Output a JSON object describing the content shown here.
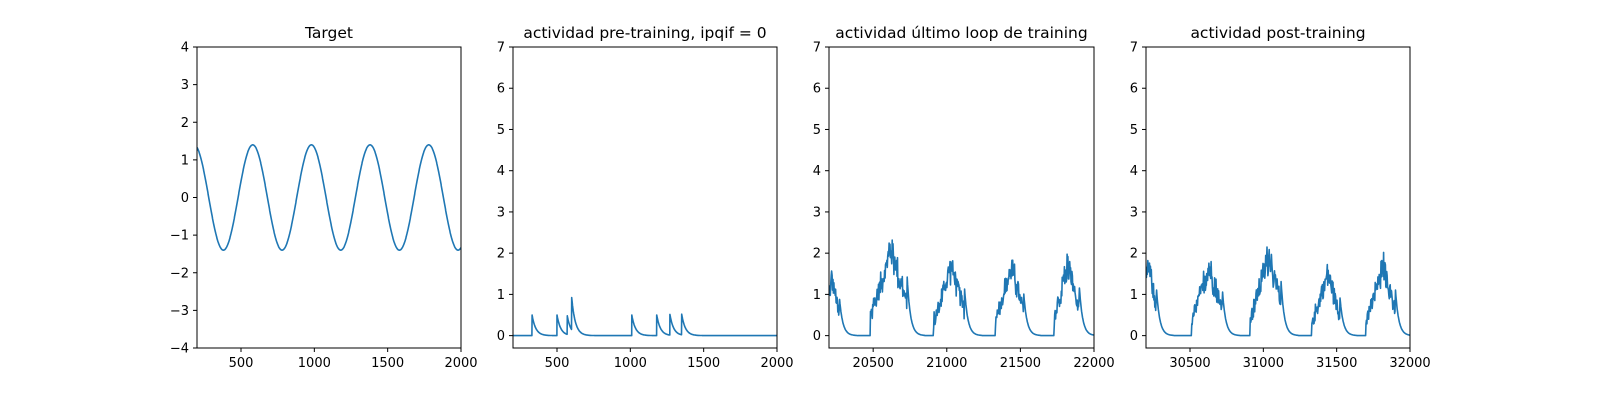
{
  "colors": {
    "series": "#1f77b4",
    "axes": "#000000",
    "background": "#ffffff"
  },
  "chart_data": [
    {
      "type": "line",
      "title": "Target",
      "xlabel": "",
      "ylabel": "",
      "xlim": [
        200,
        2000
      ],
      "ylim": [
        -4,
        4
      ],
      "xticks": [
        500,
        1000,
        1500,
        2000
      ],
      "yticks": [
        -4,
        -3,
        -2,
        -1,
        0,
        1,
        2,
        3,
        4
      ],
      "xtick_labels": [
        "500",
        "1000",
        "1500",
        "2000"
      ],
      "ytick_labels": [
        "−4",
        "−3",
        "−2",
        "−1",
        "0",
        "1",
        "2",
        "3",
        "4"
      ],
      "series": [
        {
          "kind": "sine",
          "amplitude": 1.4,
          "period": 400,
          "peaks_at": [
            580,
            980,
            1380,
            1780
          ],
          "troughs_at": [
            380,
            780,
            1180,
            1580,
            1980
          ],
          "start_value": 1.35
        }
      ]
    },
    {
      "type": "line",
      "title": "actividad pre-training, ipqif = 0",
      "xlabel": "",
      "ylabel": "",
      "xlim": [
        200,
        2000
      ],
      "ylim": [
        -0.3,
        7
      ],
      "xticks": [
        500,
        1000,
        1500,
        2000
      ],
      "yticks": [
        0,
        1,
        2,
        3,
        4,
        5,
        6,
        7
      ],
      "xtick_labels": [
        "500",
        "1000",
        "1500",
        "2000"
      ],
      "ytick_labels": [
        "0",
        "1",
        "2",
        "3",
        "4",
        "5",
        "6",
        "7"
      ],
      "series": [
        {
          "kind": "spikes",
          "baseline": 0,
          "decay": 25,
          "spikes": [
            {
              "x": 330,
              "height": 0.5
            },
            {
              "x": 500,
              "height": 0.5
            },
            {
              "x": 570,
              "height": 0.45
            },
            {
              "x": 600,
              "height": 0.78
            },
            {
              "x": 1010,
              "height": 0.5
            },
            {
              "x": 1180,
              "height": 0.5
            },
            {
              "x": 1270,
              "height": 0.5
            },
            {
              "x": 1350,
              "height": 0.5
            }
          ]
        }
      ]
    },
    {
      "type": "line",
      "title": "actividad último loop de training",
      "xlabel": "",
      "ylabel": "",
      "xlim": [
        20200,
        22000
      ],
      "ylim": [
        -0.3,
        7
      ],
      "xticks": [
        20500,
        21000,
        21500,
        22000
      ],
      "yticks": [
        0,
        1,
        2,
        3,
        4,
        5,
        6,
        7
      ],
      "xtick_labels": [
        "20500",
        "21000",
        "21500",
        "22000"
      ],
      "ytick_labels": [
        "0",
        "1",
        "2",
        "3",
        "4",
        "5",
        "6",
        "7"
      ],
      "series": [
        {
          "kind": "noisy_bursts",
          "baseline": 0,
          "bursts": [
            {
              "start": 20150,
              "peak": 20220,
              "end": 20270,
              "height": 1.75
            },
            {
              "start": 20480,
              "peak": 20620,
              "end": 20730,
              "height": 2.7
            },
            {
              "start": 20910,
              "peak": 21030,
              "end": 21120,
              "height": 2.15
            },
            {
              "start": 21330,
              "peak": 21440,
              "end": 21520,
              "height": 2.1
            },
            {
              "start": 21730,
              "peak": 21820,
              "end": 21900,
              "height": 2.2
            }
          ]
        }
      ]
    },
    {
      "type": "line",
      "title": "actividad post-training",
      "xlabel": "",
      "ylabel": "",
      "xlim": [
        30200,
        32000
      ],
      "ylim": [
        -0.3,
        7
      ],
      "xticks": [
        30500,
        31000,
        31500,
        32000
      ],
      "yticks": [
        0,
        1,
        2,
        3,
        4,
        5,
        6,
        7
      ],
      "xtick_labels": [
        "30500",
        "31000",
        "31500",
        "32000"
      ],
      "ytick_labels": [
        "0",
        "1",
        "2",
        "3",
        "4",
        "5",
        "6",
        "7"
      ],
      "series": [
        {
          "kind": "noisy_bursts",
          "baseline": 0,
          "bursts": [
            {
              "start": 30150,
              "peak": 30220,
              "end": 30270,
              "height": 2.2
            },
            {
              "start": 30510,
              "peak": 30630,
              "end": 30720,
              "height": 2.1
            },
            {
              "start": 30910,
              "peak": 31040,
              "end": 31120,
              "height": 2.5
            },
            {
              "start": 31330,
              "peak": 31440,
              "end": 31520,
              "height": 1.9
            },
            {
              "start": 31700,
              "peak": 31820,
              "end": 31900,
              "height": 2.1
            }
          ]
        }
      ]
    }
  ]
}
